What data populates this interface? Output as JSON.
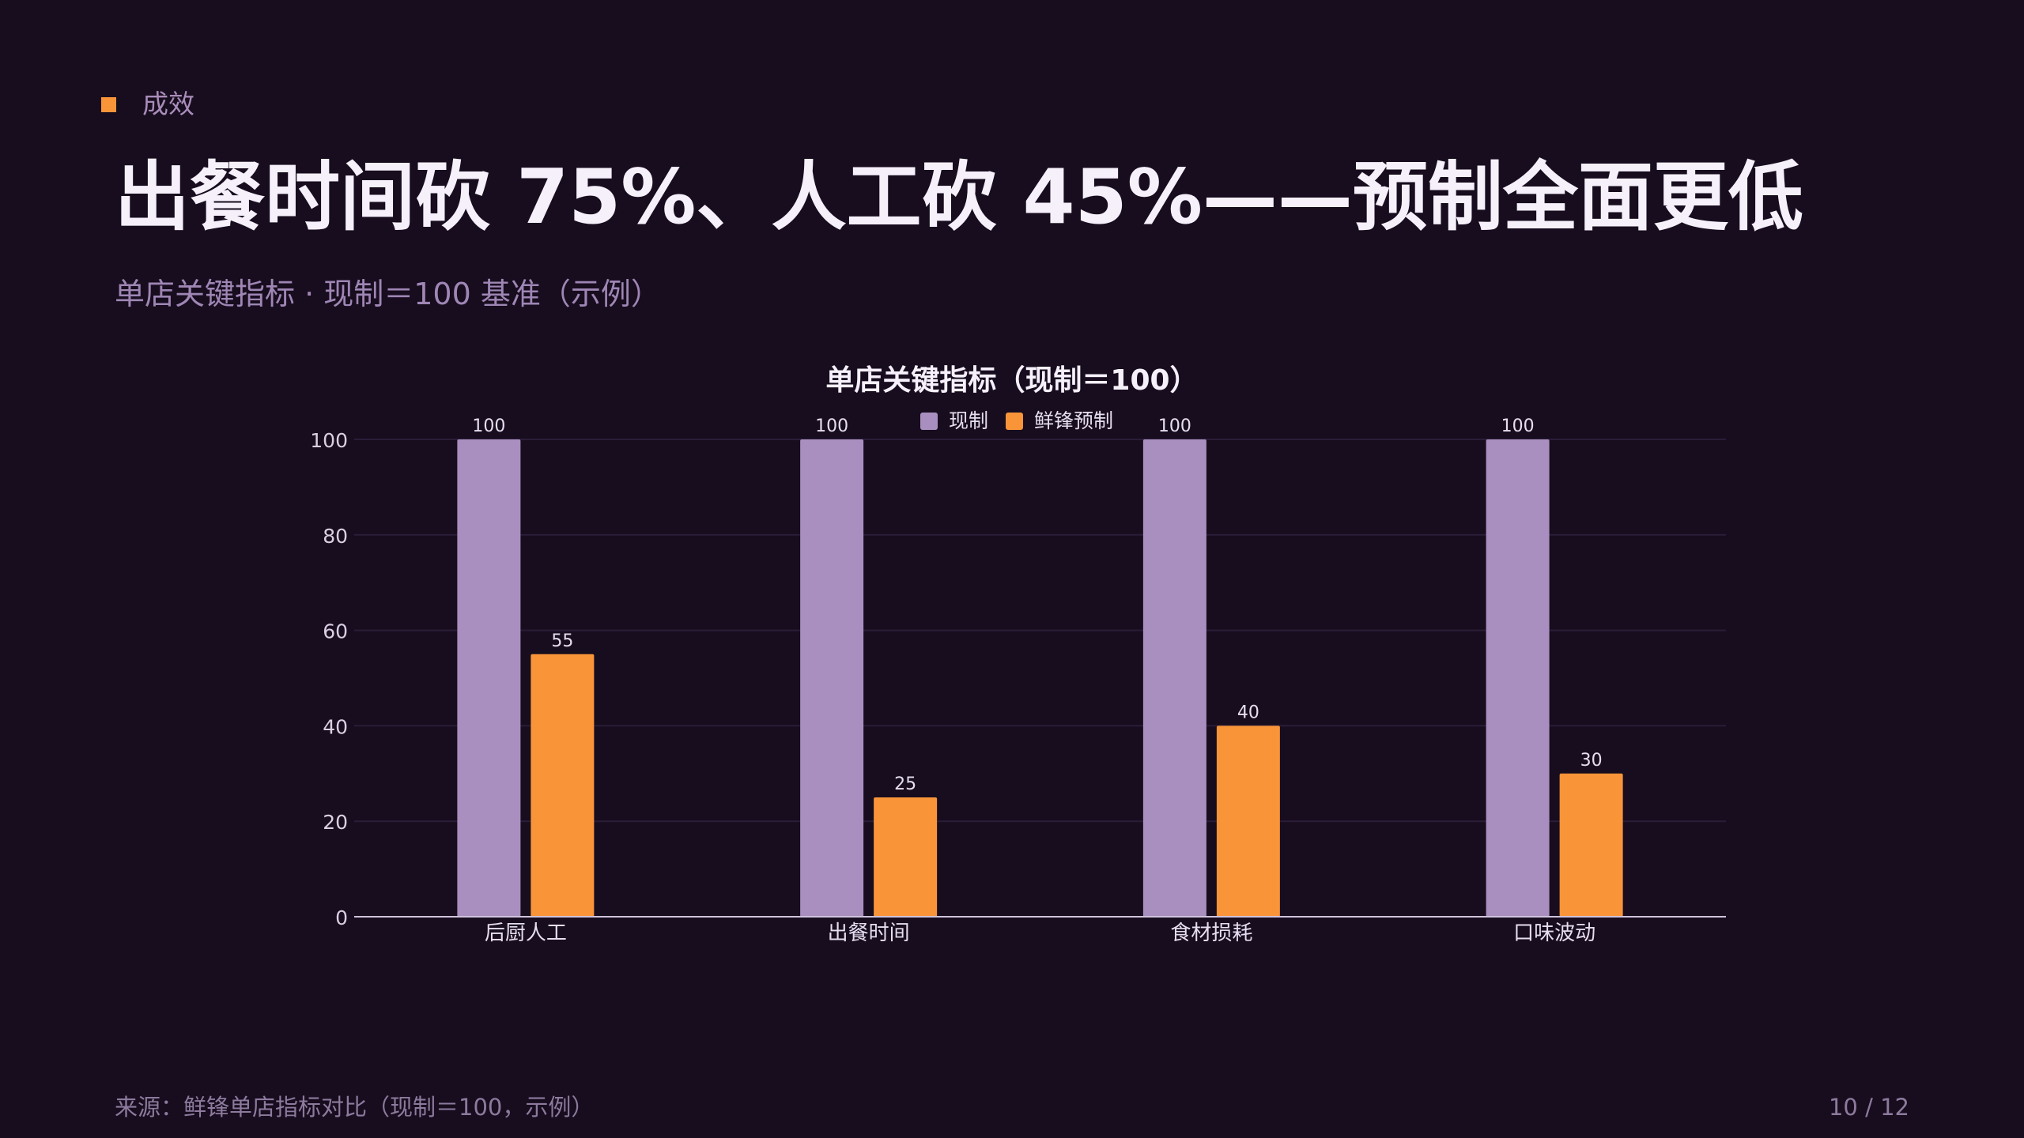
{
  "slide": {
    "kicker": "成效",
    "title": "出餐时间砍 75%、人工砍 45%——预制全面更低",
    "subtitle": "单店关键指标 · 现制＝100 基准（示例）",
    "source": "来源：鲜锋单店指标对比（现制＝100，示例）",
    "page": "10 / 12"
  },
  "colors": {
    "background": "#170d1e",
    "accent": "#f99439",
    "series_a": "#a98fbf",
    "series_b": "#f99439",
    "title": "#f6f0fb",
    "muted": "#a98cba"
  },
  "chart_data": {
    "type": "bar",
    "title": "单店关键指标（现制＝100）",
    "categories": [
      "后厨人工",
      "出餐时间",
      "食材损耗",
      "口味波动"
    ],
    "series": [
      {
        "name": "现制",
        "values": [
          100,
          100,
          100,
          100
        ]
      },
      {
        "name": "鲜锋预制",
        "values": [
          55,
          25,
          40,
          30
        ]
      }
    ],
    "ylim": [
      0,
      100
    ],
    "yticks": [
      0,
      20,
      40,
      60,
      80,
      100
    ],
    "xlabel": "",
    "ylabel": "",
    "grid": true,
    "legend": "top-center",
    "data_labels": true
  }
}
